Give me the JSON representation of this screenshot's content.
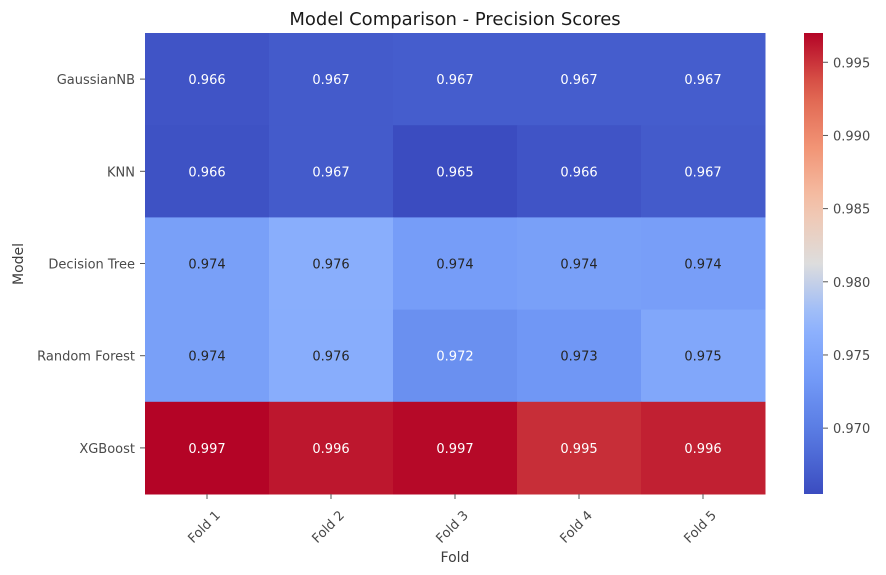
{
  "chart_data": {
    "type": "heatmap",
    "title": "Model Comparison - Precision Scores",
    "xlabel": "Fold",
    "ylabel": "Model",
    "x_categories": [
      "Fold 1",
      "Fold 2",
      "Fold 3",
      "Fold 4",
      "Fold 5"
    ],
    "y_categories": [
      "GaussianNB",
      "KNN",
      "Decision Tree",
      "Random Forest",
      "XGBoost"
    ],
    "values": [
      [
        0.9662,
        0.9668,
        0.967,
        0.967,
        0.967
      ],
      [
        0.966,
        0.9668,
        0.9655,
        0.9662,
        0.9668
      ],
      [
        0.9742,
        0.9762,
        0.9738,
        0.9742,
        0.974
      ],
      [
        0.9742,
        0.976,
        0.9722,
        0.973,
        0.9752
      ],
      [
        0.997,
        0.9962,
        0.9968,
        0.9952,
        0.9958
      ]
    ],
    "cell_labels": [
      [
        "0.966",
        "0.967",
        "0.967",
        "0.967",
        "0.967"
      ],
      [
        "0.966",
        "0.967",
        "0.965",
        "0.966",
        "0.967"
      ],
      [
        "0.974",
        "0.976",
        "0.974",
        "0.974",
        "0.974"
      ],
      [
        "0.974",
        "0.976",
        "0.972",
        "0.973",
        "0.975"
      ],
      [
        "0.997",
        "0.996",
        "0.997",
        "0.995",
        "0.996"
      ]
    ],
    "colormap": "coolwarm",
    "colorbar": {
      "range": [
        0.9655,
        0.997
      ],
      "ticks": [
        0.97,
        0.975,
        0.98,
        0.985,
        0.99,
        0.995
      ],
      "tick_labels": [
        "0.970",
        "0.975",
        "0.980",
        "0.985",
        "0.990",
        "0.995"
      ]
    },
    "grid": false,
    "legend": "colorbar-right"
  }
}
